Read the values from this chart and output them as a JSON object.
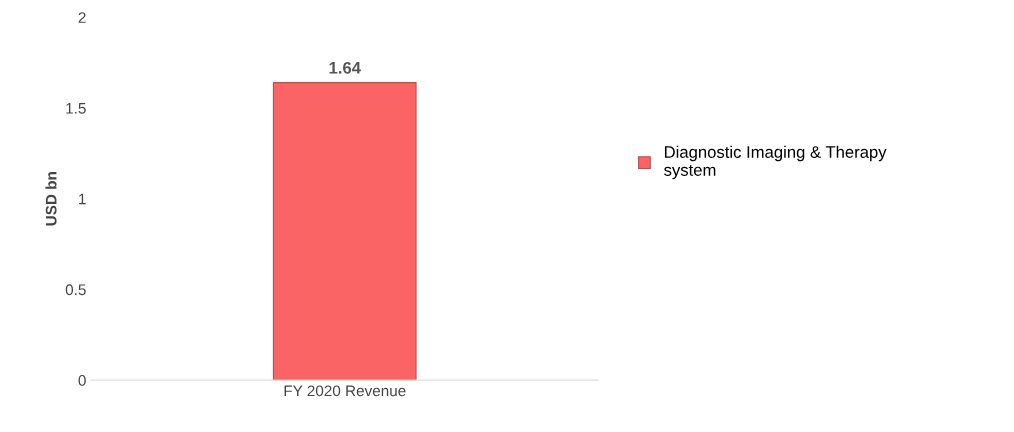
{
  "chart_data": {
    "type": "bar",
    "ylabel": "USD bn",
    "categories": [
      "FY 2020 Revenue"
    ],
    "series": [
      {
        "name": "Diagnostic Imaging & Therapy system",
        "color": "#fa6465",
        "values": [
          1.64
        ]
      }
    ],
    "ylim": [
      0,
      2
    ],
    "yticks": [
      0,
      0.5,
      1,
      1.5,
      2
    ],
    "grid": false,
    "legend": "right",
    "data_labels": true
  }
}
